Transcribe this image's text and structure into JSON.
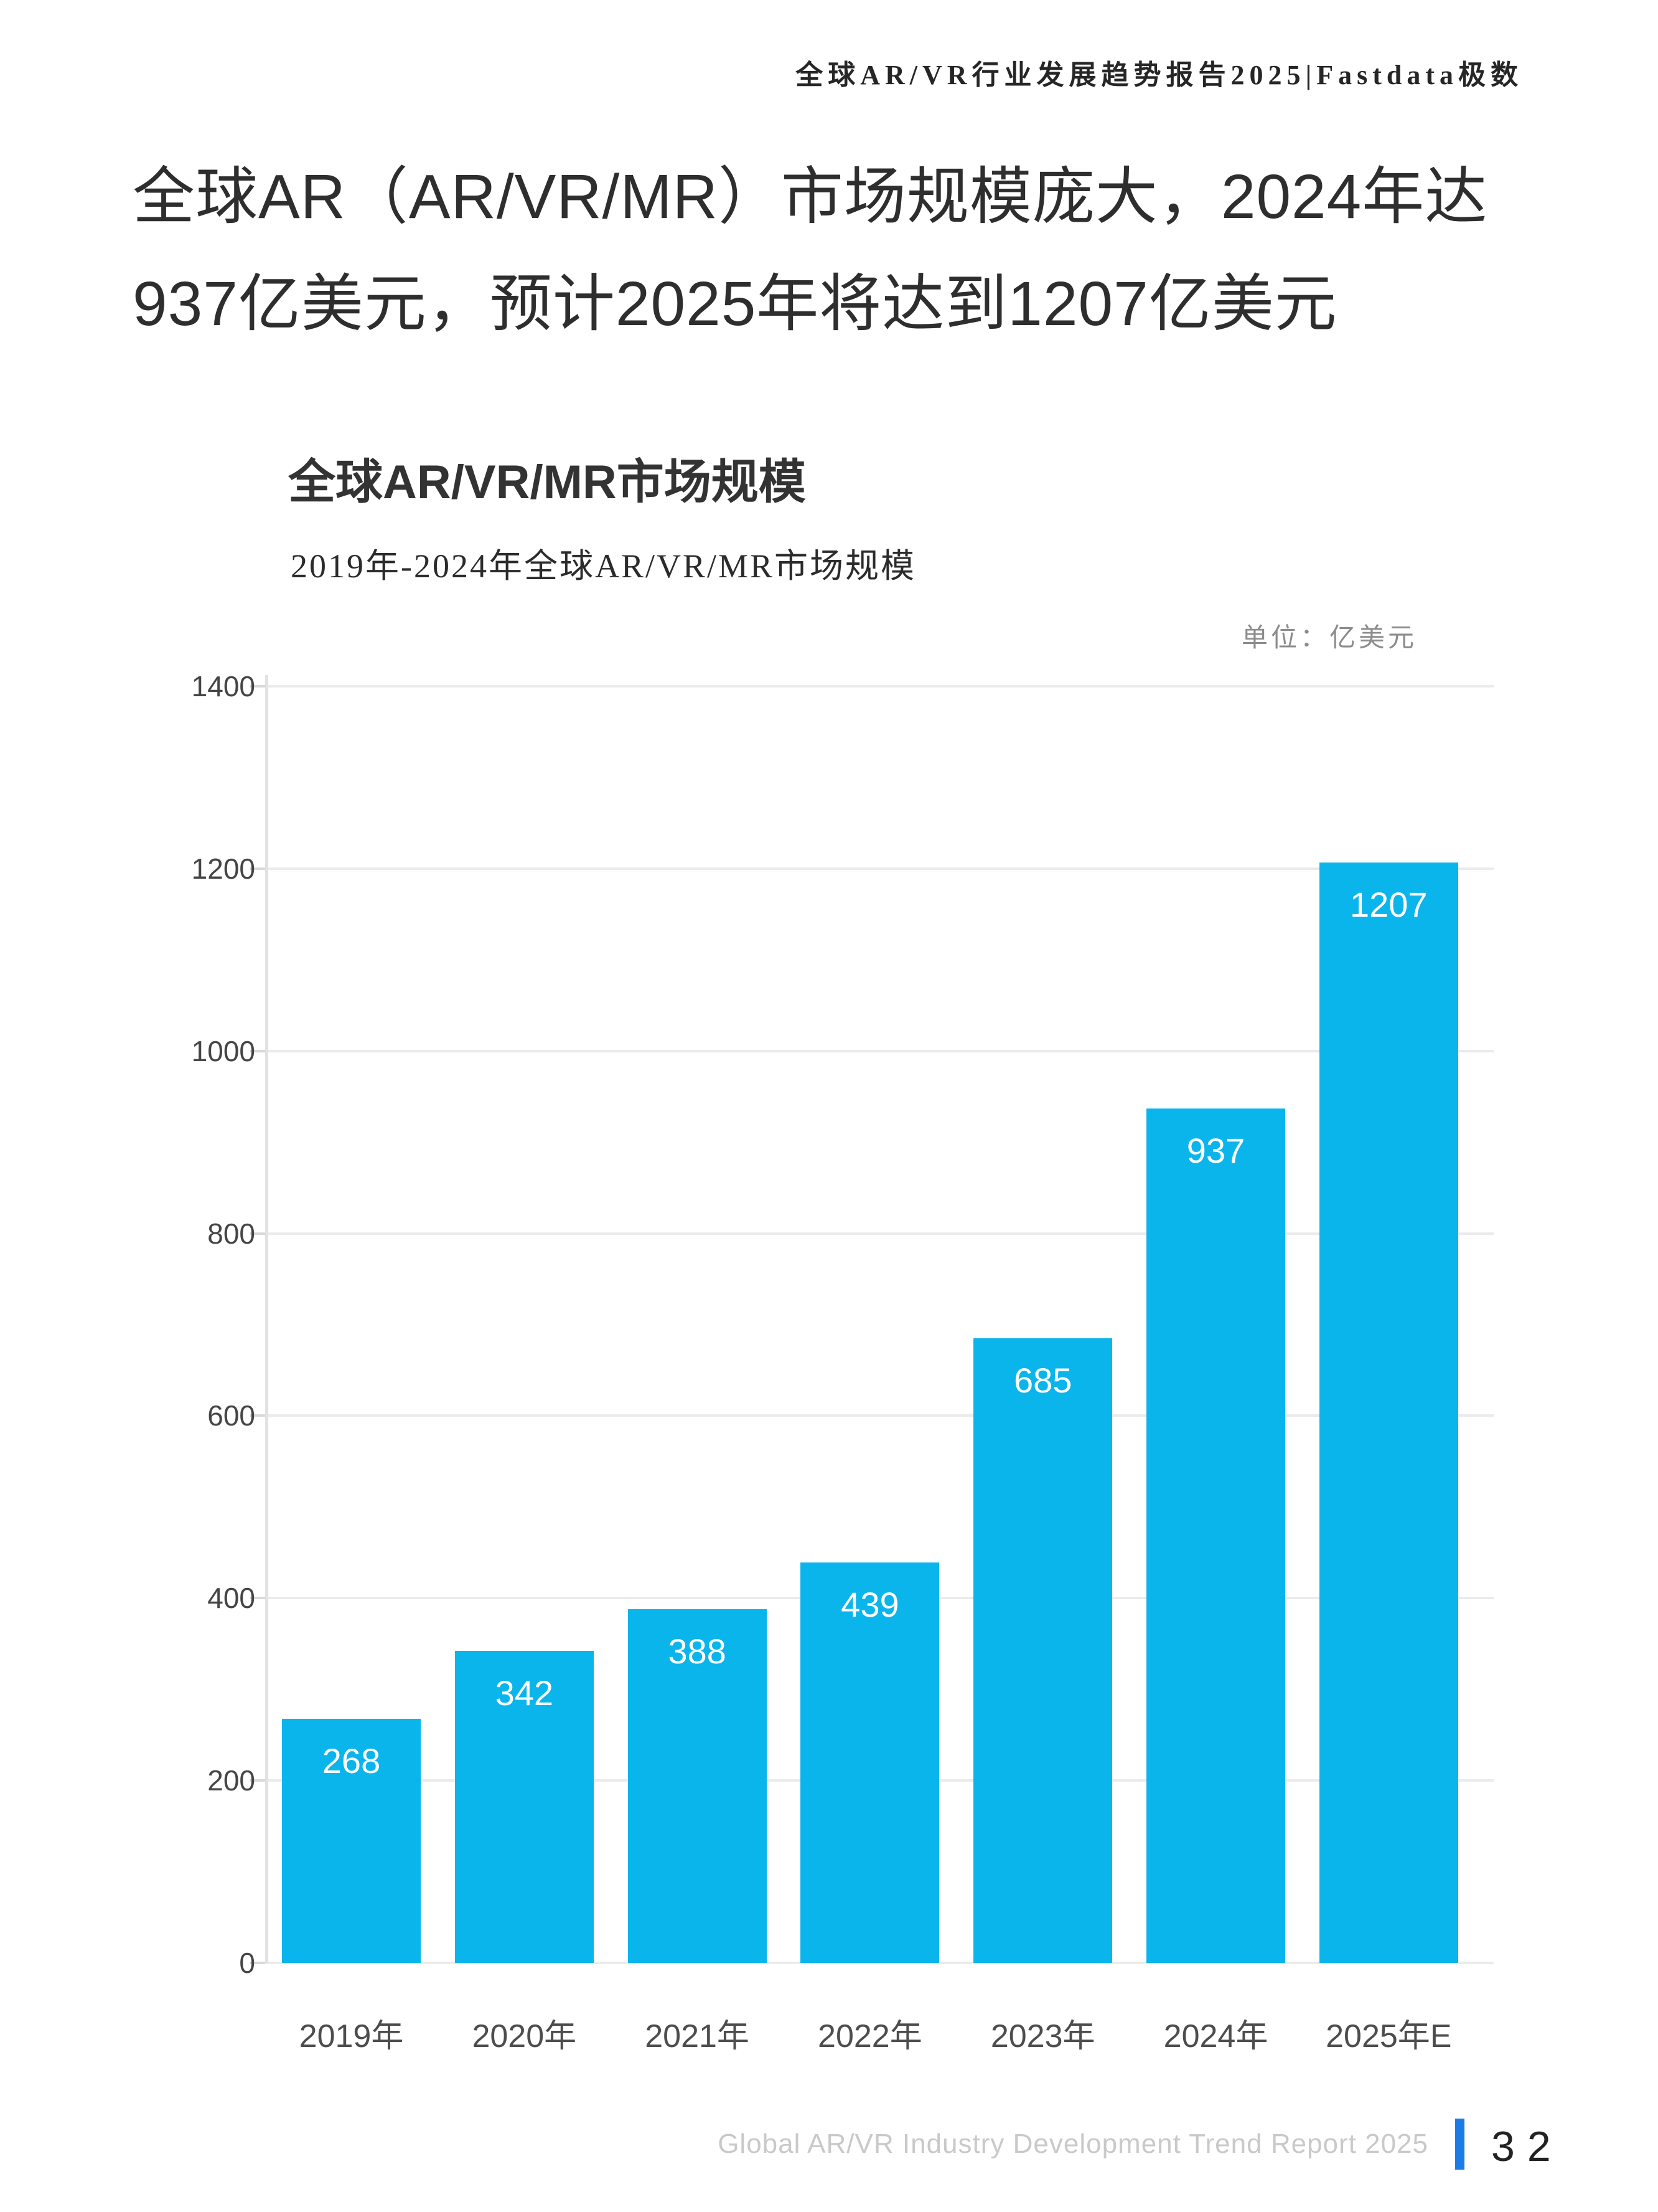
{
  "page": {
    "header": "全球AR/VR行业发展趋势报告2025|Fastdata极数",
    "title_line1": "全球AR（AR/VR/MR）市场规模庞大，2024年达",
    "title_line2": "937亿美元，预计2025年将达到1207亿美元",
    "footer_text": "Global AR/VR Industry Development Trend Report 2025",
    "page_number": "32"
  },
  "chart_data": {
    "type": "bar",
    "title": "全球AR/VR/MR市场规模",
    "subtitle": "2019年-2024年全球AR/VR/MR市场规模",
    "unit_label": "单位：亿美元",
    "categories": [
      "2019年",
      "2020年",
      "2021年",
      "2022年",
      "2023年",
      "2024年",
      "2025年E"
    ],
    "values": [
      268,
      342,
      388,
      439,
      685,
      937,
      1207
    ],
    "ylim": [
      0,
      1400
    ],
    "ytick_step": 200,
    "grid": true,
    "legend": "none",
    "value_labels": "inside-top, white"
  },
  "colors": {
    "bar": "#0AB5EC",
    "accent": "#1B7CE8",
    "grid": "#ebebeb",
    "axis": "#e2e2e2",
    "tick": "#d9d9d9"
  }
}
